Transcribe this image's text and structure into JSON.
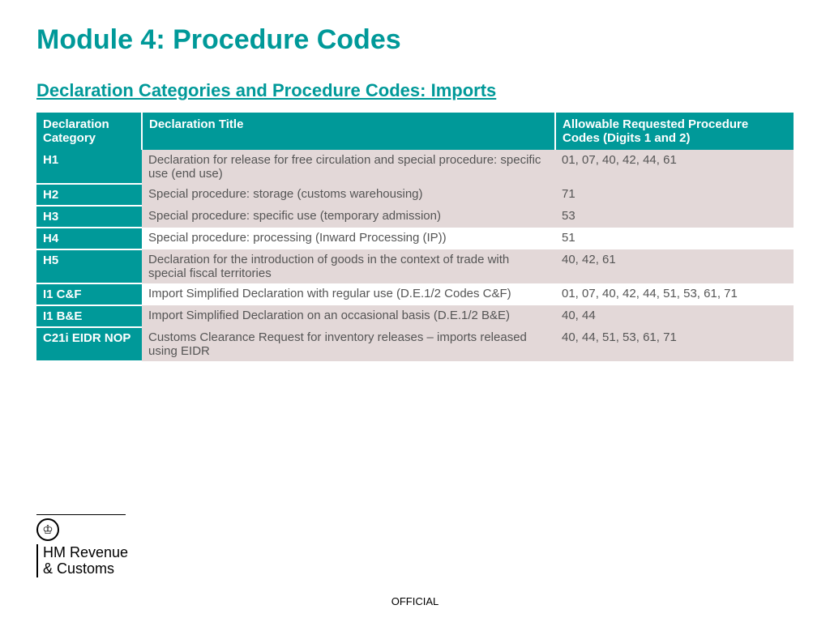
{
  "colors": {
    "teal": "#009999",
    "row_alt_bg": "#e3d8d8",
    "row_plain_bg": "#ffffff",
    "text_body": "#555555",
    "header_text": "#ffffff"
  },
  "typography": {
    "title_fontsize": 34,
    "subtitle_fontsize": 22,
    "body_fontsize": 15,
    "footer_fontsize": 13
  },
  "title": "Module 4: Procedure Codes",
  "subtitle": "Declaration Categories and Procedure Codes: Imports",
  "table": {
    "columns": [
      "Declaration Category",
      "Declaration Title",
      "Allowable Requested Procedure Codes (Digits 1 and 2)"
    ],
    "rows": [
      {
        "category": "H1",
        "title": "Declaration for release for free circulation and special procedure: specific use (end use)",
        "codes": "01, 07, 40, 42, 44, 61",
        "alt": true
      },
      {
        "category": "H2",
        "title": "Special procedure: storage (customs warehousing)",
        "codes": "71",
        "alt": true
      },
      {
        "category": "H3",
        "title": "Special procedure: specific use (temporary admission)",
        "codes": "53",
        "alt": true
      },
      {
        "category": "H4",
        "title": "Special procedure: processing (Inward Processing (IP))",
        "codes": "51",
        "alt": false
      },
      {
        "category": "H5",
        "title": "Declaration for the introduction of goods in the context of trade with special fiscal territories",
        "codes": "40, 42, 61",
        "alt": true
      },
      {
        "category": "I1 C&F",
        "title": "Import Simplified Declaration with regular use (D.E.1/2 Codes C&F)",
        "codes": "01, 07, 40, 42, 44, 51, 53, 61, 71",
        "alt": false
      },
      {
        "category": "I1 B&E",
        "title": "Import Simplified Declaration on an occasional basis (D.E.1/2 B&E)",
        "codes": "40, 44",
        "alt": true
      },
      {
        "category": "C21i EIDR NOP",
        "title": "Customs Clearance Request for inventory releases – imports released using EIDR",
        "codes": "40, 44, 51, 53, 61, 71",
        "alt": true
      }
    ]
  },
  "logo": {
    "line1": "HM Revenue",
    "line2": "& Customs"
  },
  "footer": "OFFICIAL"
}
